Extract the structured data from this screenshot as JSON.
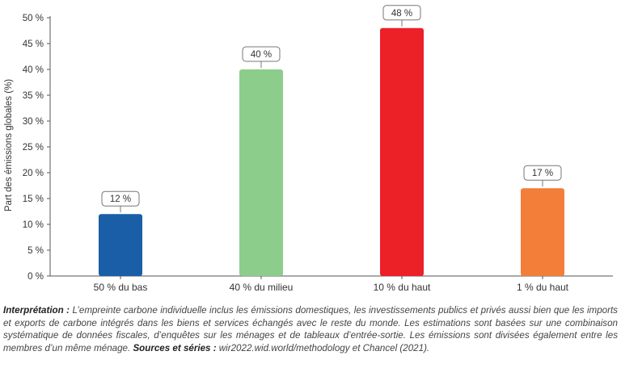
{
  "chart_data": {
    "type": "bar",
    "categories": [
      "50 % du bas",
      "40 % du milieu",
      "10 % du haut",
      "1 % du haut"
    ],
    "values": [
      12,
      40,
      48,
      17
    ],
    "value_labels": [
      "12 %",
      "40 %",
      "48 %",
      "17 %"
    ],
    "colors": [
      "#1a5ea8",
      "#8ccd8c",
      "#ec2027",
      "#f27e3a"
    ],
    "ylabel": "Part des émissions globales  (%)",
    "ylim": [
      0,
      50
    ],
    "yticks": [
      0,
      5,
      10,
      15,
      20,
      25,
      30,
      35,
      40,
      45,
      50
    ],
    "ytick_labels": [
      "0 %",
      "5 %",
      "10 %",
      "15 %",
      "20 %",
      "25 %",
      "30 %",
      "35 %",
      "40 %",
      "45 %",
      "50 %"
    ],
    "grid": false
  },
  "caption": {
    "interp_label": "Interprétation :",
    "interp_text": " L’empreinte carbone individuelle inclus les émissions domestiques, les investissements publics et privés aussi bien que les imports et exports de carbone intégrés dans les biens et services échangés avec le reste du monde. Les estimations sont basées sur une combinaison systématique de données fiscales, d’enquêtes sur les ménages et de tableaux d’entrée-sortie. Les émissions sont divisées également entre les membres d’un même ménage. ",
    "sources_label": "Sources et séries :",
    "sources_text": " wir2022.wid.world/methodology et Chancel (2021)."
  }
}
